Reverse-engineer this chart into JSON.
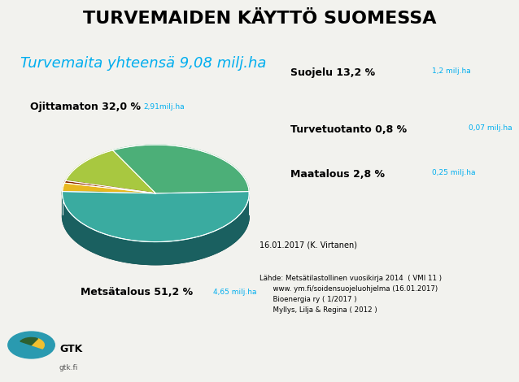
{
  "title": "TURVEMAIDEN KÄYTTÖ SUOMESSA",
  "subtitle": "Turvemaita yhteensä 9,08 milj.ha",
  "subtitle_color": "#00AEEF",
  "background_color": "#f2f2ee",
  "slices": [
    {
      "label": "Metsätalous",
      "pct": 51.2,
      "value": "4,65 milj.ha",
      "color": "#3AABA0",
      "shadow_color": "#1a6060"
    },
    {
      "label": "Ojittamaton",
      "pct": 32.0,
      "value": "2,91milj.ha",
      "color": "#4CAF78",
      "shadow_color": "#2a6640"
    },
    {
      "label": "Suojelu",
      "pct": 13.2,
      "value": "1,2 milj.ha",
      "color": "#A8C840",
      "shadow_color": "#6a8020"
    },
    {
      "label": "Turvetuotanto",
      "pct": 0.8,
      "value": "0,07 milj.ha",
      "color": "#8B2500",
      "shadow_color": "#5a1800"
    },
    {
      "label": "Maatalous",
      "pct": 2.8,
      "value": "0,25 milj.ha",
      "color": "#E8B820",
      "shadow_color": "#8a6800"
    }
  ],
  "date_text": "16.01.2017 (K. Virtanen)",
  "source_lines": [
    "Lähde: Metsätilastollinen vuosikirja 2014  ( VMI 11 )",
    "      www. ym.fi/soidensuojeluohjelma (16.01.2017)",
    "      Bioenergia ry ( 1/2017 )",
    "      Myllys, Lilja & Regina ( 2012 )"
  ],
  "title_fontsize": 16,
  "subtitle_fontsize": 13,
  "label_fontsize": 9,
  "small_fontsize": 6.5
}
